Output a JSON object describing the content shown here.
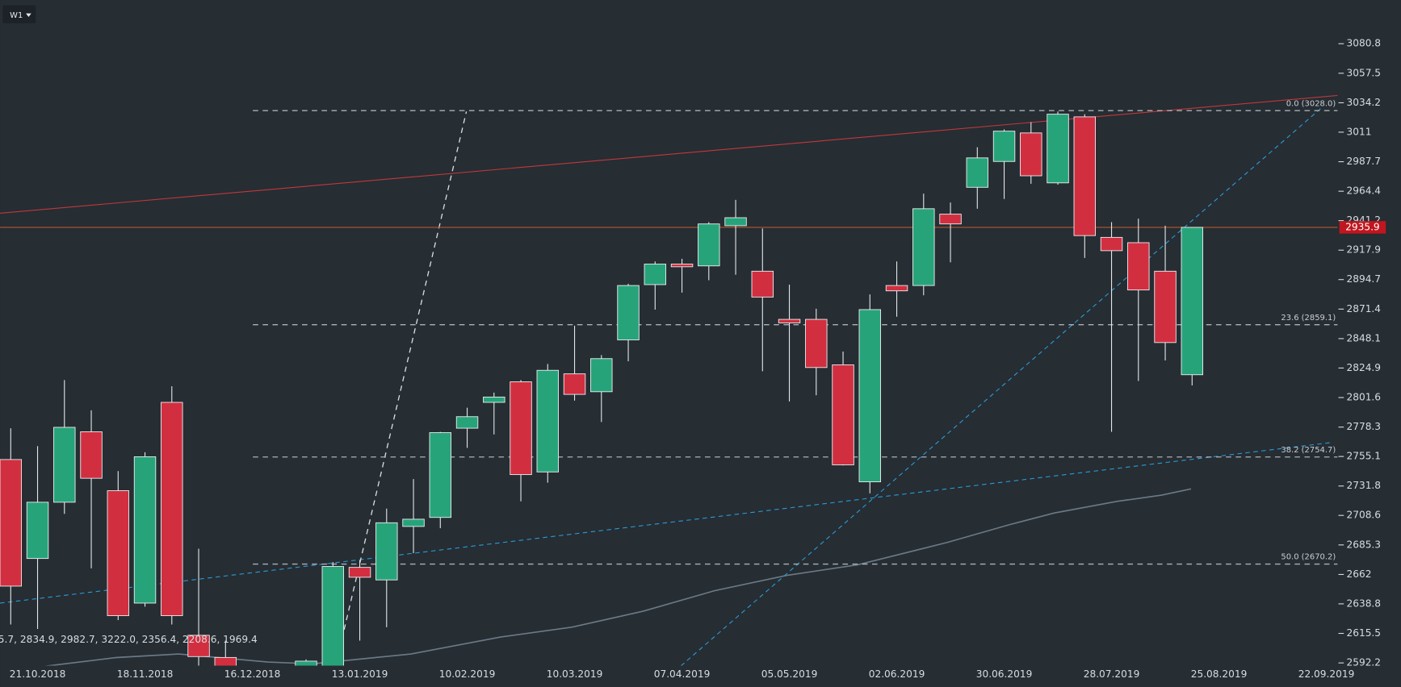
{
  "chart_data": {
    "type": "candlestick",
    "timeframe": "W1",
    "annotation": "5.7, 2834.9, 2982.7, 3222.0, 2356.4, 2208.6, 1969.4",
    "categories": [
      null,
      "21.10.2018",
      null,
      null,
      null,
      "18.11.2018",
      null,
      null,
      null,
      "16.12.2018",
      null,
      null,
      null,
      "13.01.2019",
      null,
      null,
      null,
      "10.02.2019",
      null,
      null,
      null,
      "10.03.2019",
      null,
      null,
      null,
      "07.04.2019",
      null,
      null,
      null,
      "05.05.2019",
      null,
      null,
      null,
      "02.06.2019",
      null,
      null,
      null,
      "30.06.2019",
      null,
      null,
      null,
      "28.07.2019",
      null,
      null,
      null,
      "25.08.2019",
      null,
      null,
      null,
      "22.09.2019"
    ],
    "open": [
      2752.7,
      2674.6,
      2719.0,
      2774.6,
      2728.1,
      2639.4,
      2797.8,
      2614.0,
      2596.5,
      null,
      null,
      2570.0,
      2588.7,
      2667.6,
      2657.7,
      2699.9,
      2707.0,
      2777.4,
      2797.8,
      2814.0,
      2742.9,
      2820.3,
      2806.2,
      2847.1,
      2890.7,
      2906.9,
      2905.5,
      2937.2,
      2901.3,
      2863.3,
      2863.3,
      2827.4,
      2735.1,
      2890.0,
      2890.0,
      2946.3,
      2967.5,
      2987.9,
      3010.4,
      2971.0,
      3023.1,
      2928.0,
      2923.8,
      2901.3,
      2819.6,
      null,
      null,
      null,
      null,
      null
    ],
    "high": [
      2777.4,
      2763.3,
      2815.4,
      2791.5,
      2743.6,
      2758.4,
      2810.5,
      2682.3,
      2609.8,
      null,
      null,
      2595.0,
      2671.8,
      2673.2,
      2714.0,
      2737.3,
      2774.5,
      2793.6,
      2805.5,
      2815.4,
      2828.1,
      2858.3,
      2835.1,
      2891.4,
      2909.0,
      2911.1,
      2940.0,
      2957.6,
      2935.1,
      2890.7,
      2871.7,
      2837.9,
      2883.0,
      2909.0,
      2962.5,
      2955.5,
      2999.1,
      3013.2,
      3018.9,
      3027.3,
      3025.2,
      2940.0,
      2942.8,
      2937.2,
      2935.9,
      null,
      null,
      null,
      null,
      null
    ],
    "low": [
      2622.5,
      2619.0,
      2709.8,
      2666.8,
      2626.0,
      2636.6,
      2622.5,
      2587.3,
      2570.0,
      null,
      null,
      2560.0,
      2575.0,
      2609.8,
      2620.4,
      2678.8,
      2698.5,
      2761.9,
      2772.5,
      2719.7,
      2734.4,
      2799.2,
      2782.3,
      2830.2,
      2871.0,
      2884.4,
      2894.2,
      2898.5,
      2822.4,
      2798.5,
      2803.4,
      2748.0,
      2726.0,
      2865.4,
      2882.3,
      2908.3,
      2950.6,
      2958.3,
      2970.3,
      2969.6,
      2911.8,
      2774.6,
      2814.7,
      2830.9,
      2811.2,
      null,
      null,
      null,
      null,
      null
    ],
    "close": [
      2652.8,
      2719.0,
      2778.1,
      2737.9,
      2629.5,
      2754.9,
      2629.5,
      2597.2,
      2576.7,
      null,
      null,
      2593.6,
      2668.3,
      2659.8,
      2702.8,
      2705.6,
      2773.9,
      2786.5,
      2802.0,
      2740.8,
      2823.1,
      2804.1,
      2832.3,
      2890.0,
      2906.9,
      2904.8,
      2938.6,
      2943.5,
      2880.9,
      2860.5,
      2825.3,
      2748.5,
      2871.0,
      2885.8,
      2950.6,
      2938.6,
      2990.7,
      3011.8,
      2976.6,
      3025.2,
      2929.4,
      2917.5,
      2886.5,
      2845.0,
      2935.9,
      null,
      null,
      null,
      null,
      null
    ],
    "up_color": "#27a37a",
    "down_color": "#d12f40",
    "last_price": 2935.9,
    "last_price_color": "#c0161f",
    "ylim": [
      2573.2,
      3115.3
    ],
    "yticks": [
      3080.8,
      3057.5,
      3034.2,
      3011.0,
      2987.7,
      2964.4,
      2941.2,
      2917.9,
      2894.7,
      2871.4,
      2848.1,
      2824.9,
      2801.6,
      2778.3,
      2755.1,
      2731.8,
      2708.6,
      2685.3,
      2662.0,
      2638.8,
      2615.5,
      2592.2
    ],
    "fib_levels": [
      {
        "value": 3028.0,
        "label": "0.0 (3028.0)"
      },
      {
        "value": 2859.1,
        "label": "23.6 (2859.1)"
      },
      {
        "value": 2754.7,
        "label": "38.2 (2754.7)"
      },
      {
        "value": 2670.2,
        "label": "50.0 (2670.2)"
      }
    ]
  }
}
